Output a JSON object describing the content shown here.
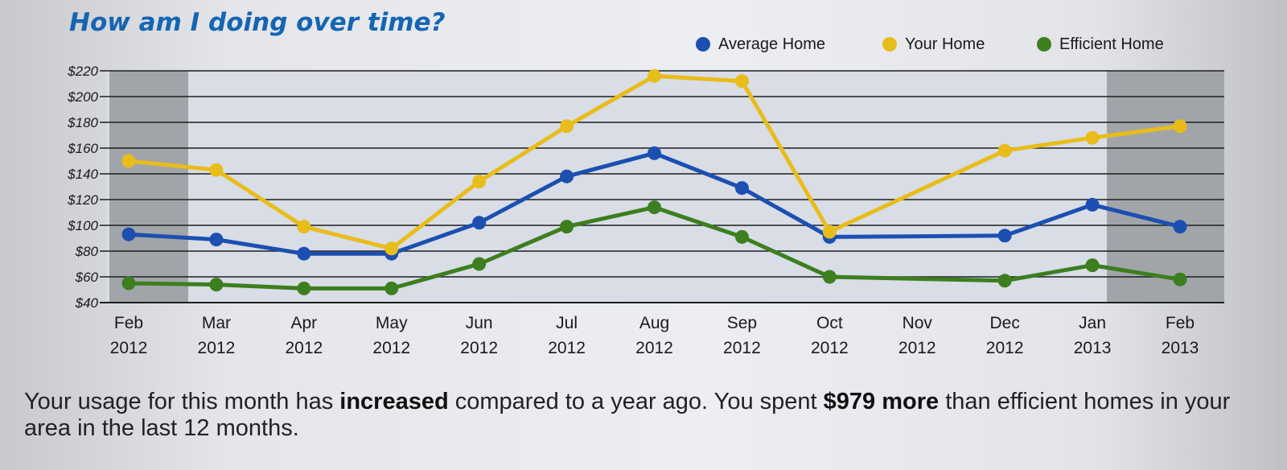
{
  "title": "How am I doing over time?",
  "summary": {
    "part1": "Your usage for this month has ",
    "bold1": "increased",
    "part2": " compared to a year ago. You spent ",
    "bold2": "$979 more",
    "part3": " than efficient homes in your area in the last 12 months."
  },
  "colors": {
    "average": "#1c4fb0",
    "yours": "#e8bd1a",
    "efficient": "#3d7e1f",
    "title": "#1565b3",
    "plot_bg": "#d8dde6",
    "shade": "#8f9196"
  },
  "chart_data": {
    "type": "line",
    "x": [
      "Feb 2012",
      "Mar 2012",
      "Apr 2012",
      "May 2012",
      "Jun 2012",
      "Jul 2012",
      "Aug 2012",
      "Sep 2012",
      "Oct 2012",
      "Nov 2012",
      "Dec 2012",
      "Jan 2013",
      "Feb 2013"
    ],
    "tick_labels": [
      [
        "Feb",
        "2012"
      ],
      [
        "Mar",
        "2012"
      ],
      [
        "Apr",
        "2012"
      ],
      [
        "May",
        "2012"
      ],
      [
        "Jun",
        "2012"
      ],
      [
        "Jul",
        "2012"
      ],
      [
        "Aug",
        "2012"
      ],
      [
        "Sep",
        "2012"
      ],
      [
        "Oct",
        "2012"
      ],
      [
        "Nov",
        "2012"
      ],
      [
        "Dec",
        "2012"
      ],
      [
        "Jan",
        "2013"
      ],
      [
        "Feb",
        "2013"
      ]
    ],
    "yticks": [
      "$40",
      "$60",
      "$80",
      "$100",
      "$120",
      "$140",
      "$160",
      "$180",
      "$200",
      "$220"
    ],
    "ylim": [
      40,
      220
    ],
    "grid": true,
    "legend_position": "top-right",
    "series": [
      {
        "name": "Average Home",
        "color": "#1c4fb0",
        "values": [
          93,
          89,
          78,
          78,
          102,
          138,
          156,
          129,
          91,
          null,
          92,
          116,
          99
        ]
      },
      {
        "name": "Your Home",
        "color": "#e8bd1a",
        "values": [
          150,
          143,
          99,
          82,
          134,
          177,
          216,
          212,
          95,
          null,
          158,
          168,
          177
        ]
      },
      {
        "name": "Efficient Home",
        "color": "#3d7e1f",
        "values": [
          55,
          54,
          51,
          51,
          70,
          99,
          114,
          91,
          60,
          null,
          57,
          69,
          58
        ]
      }
    ]
  }
}
